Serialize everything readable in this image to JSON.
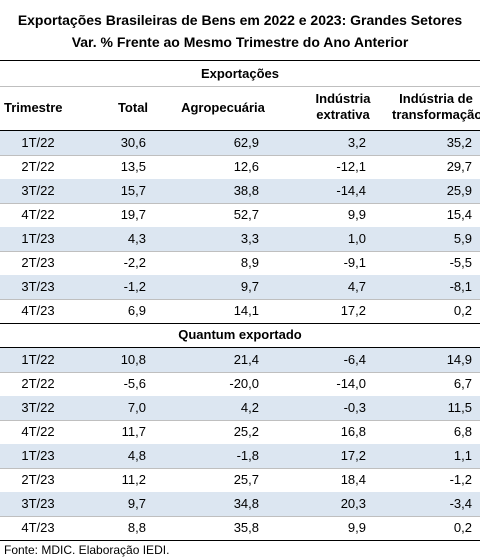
{
  "title": "Exportações Brasileiras de Bens em 2022 e 2023: Grandes Setores",
  "subtitle": "Var. %  Frente ao Mesmo Trimestre do Ano Anterior",
  "columns": [
    "Trimestre",
    "Total",
    "Agropecuária",
    "Indústria extrativa",
    "Indústria de transformação"
  ],
  "sections": [
    {
      "name": "Exportações",
      "rows": [
        [
          "1T/22",
          "30,6",
          "62,9",
          "3,2",
          "35,2"
        ],
        [
          "2T/22",
          "13,5",
          "12,6",
          "-12,1",
          "29,7"
        ],
        [
          "3T/22",
          "15,7",
          "38,8",
          "-14,4",
          "25,9"
        ],
        [
          "4T/22",
          "19,7",
          "52,7",
          "9,9",
          "15,4"
        ],
        [
          "1T/23",
          "4,3",
          "3,3",
          "1,0",
          "5,9"
        ],
        [
          "2T/23",
          "-2,2",
          "8,9",
          "-9,1",
          "-5,5"
        ],
        [
          "3T/23",
          "-1,2",
          "9,7",
          "4,7",
          "-8,1"
        ],
        [
          "4T/23",
          "6,9",
          "14,1",
          "17,2",
          "0,2"
        ]
      ]
    },
    {
      "name": "Quantum exportado",
      "rows": [
        [
          "1T/22",
          "10,8",
          "21,4",
          "-6,4",
          "14,9"
        ],
        [
          "2T/22",
          "-5,6",
          "-20,0",
          "-14,0",
          "6,7"
        ],
        [
          "3T/22",
          "7,0",
          "4,2",
          "-0,3",
          "11,5"
        ],
        [
          "4T/22",
          "11,7",
          "25,2",
          "16,8",
          "6,8"
        ],
        [
          "1T/23",
          "4,8",
          "-1,8",
          "17,2",
          "1,1"
        ],
        [
          "2T/23",
          "11,2",
          "25,7",
          "18,4",
          "-1,2"
        ],
        [
          "3T/23",
          "9,7",
          "34,8",
          "20,3",
          "-3,4"
        ],
        [
          "4T/23",
          "8,8",
          "35,8",
          "9,9",
          "0,2"
        ]
      ]
    }
  ],
  "source": "Fonte: MDIC. Elaboração IEDI."
}
